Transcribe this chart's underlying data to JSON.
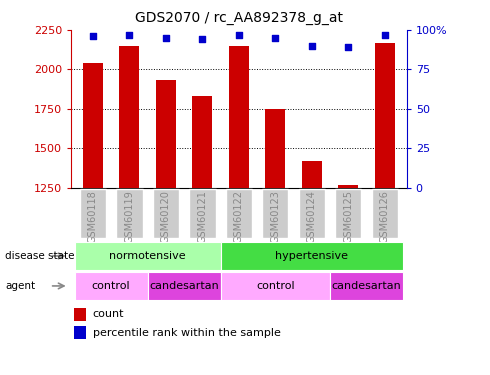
{
  "title": "GDS2070 / rc_AA892378_g_at",
  "samples": [
    "GSM60118",
    "GSM60119",
    "GSM60120",
    "GSM60121",
    "GSM60122",
    "GSM60123",
    "GSM60124",
    "GSM60125",
    "GSM60126"
  ],
  "bar_values": [
    2040,
    2150,
    1930,
    1830,
    2150,
    1750,
    1420,
    1265,
    2165
  ],
  "percentile_values": [
    96,
    97,
    95,
    94,
    97,
    95,
    90,
    89,
    97
  ],
  "ylim_left": [
    1250,
    2250
  ],
  "ylim_right": [
    0,
    100
  ],
  "yticks_left": [
    1250,
    1500,
    1750,
    2000,
    2250
  ],
  "yticks_right": [
    0,
    25,
    50,
    75,
    100
  ],
  "bar_color": "#cc0000",
  "dot_color": "#0000cc",
  "disease_state": [
    {
      "label": "normotensive",
      "start": 0,
      "end": 4,
      "color": "#aaffaa"
    },
    {
      "label": "hypertensive",
      "start": 4,
      "end": 9,
      "color": "#44dd44"
    }
  ],
  "agent": [
    {
      "label": "control",
      "start": 0,
      "end": 2,
      "color": "#ffaaff"
    },
    {
      "label": "candesartan",
      "start": 2,
      "end": 4,
      "color": "#dd44dd"
    },
    {
      "label": "control",
      "start": 4,
      "end": 7,
      "color": "#ffaaff"
    },
    {
      "label": "candesartan",
      "start": 7,
      "end": 9,
      "color": "#dd44dd"
    }
  ],
  "tick_label_color": "#888888",
  "left_axis_color": "#cc0000",
  "right_axis_color": "#0000cc",
  "xtick_bg_color": "#cccccc"
}
